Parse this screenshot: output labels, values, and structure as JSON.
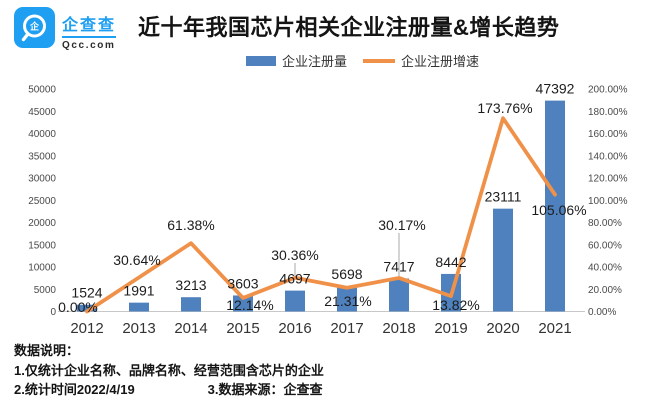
{
  "header": {
    "logo": {
      "brand": "企查查",
      "domain": "Qcc.com"
    },
    "title": "近十年我国芯片相关企业注册量&增长趋势"
  },
  "chart_data": {
    "type": "bar+line",
    "title": "近十年我国芯片相关企业注册量&增长趋势",
    "categories": [
      "2012",
      "2013",
      "2014",
      "2015",
      "2016",
      "2017",
      "2018",
      "2019",
      "2020",
      "2021"
    ],
    "series": [
      {
        "name": "企业注册量",
        "type": "bar",
        "axis": "left",
        "color": "#4e81bd",
        "values": [
          1524,
          1991,
          3213,
          3603,
          4697,
          5698,
          7417,
          8442,
          23111,
          47392
        ],
        "labels": [
          "1524",
          "1991",
          "3213",
          "3603",
          "4697",
          "5698",
          "7417",
          "8442",
          "23111",
          "47392"
        ]
      },
      {
        "name": "企业注册增速",
        "type": "line",
        "axis": "right",
        "color": "#f0914a",
        "values": [
          0,
          30.64,
          61.38,
          12.14,
          30.36,
          21.31,
          30.17,
          13.82,
          173.76,
          105.06
        ],
        "labels": [
          "0.00%",
          "30.64%",
          "61.38%",
          "12.14%",
          "30.36%",
          "21.31%",
          "30.17%",
          "13.82%",
          "173.76%",
          "105.06%"
        ]
      }
    ],
    "left_axis": {
      "min": 0,
      "max": 50000,
      "step": 5000
    },
    "right_axis": {
      "min": 0,
      "max": 200,
      "step": 20,
      "unit": "%"
    },
    "legend_position": "top",
    "grid": false
  },
  "footer": {
    "heading": "数据说明：",
    "line1": "1.仅统计企业名称、品牌名称、经营范围含芯片的企业",
    "line2a": "2.统计时间2022/4/19",
    "line2b": "3.数据来源：企查查"
  },
  "colors": {
    "brand": "#1e9ff2",
    "bar": "#4e81bd",
    "line": "#f0914a",
    "axis_line": "#c8c8c8"
  }
}
